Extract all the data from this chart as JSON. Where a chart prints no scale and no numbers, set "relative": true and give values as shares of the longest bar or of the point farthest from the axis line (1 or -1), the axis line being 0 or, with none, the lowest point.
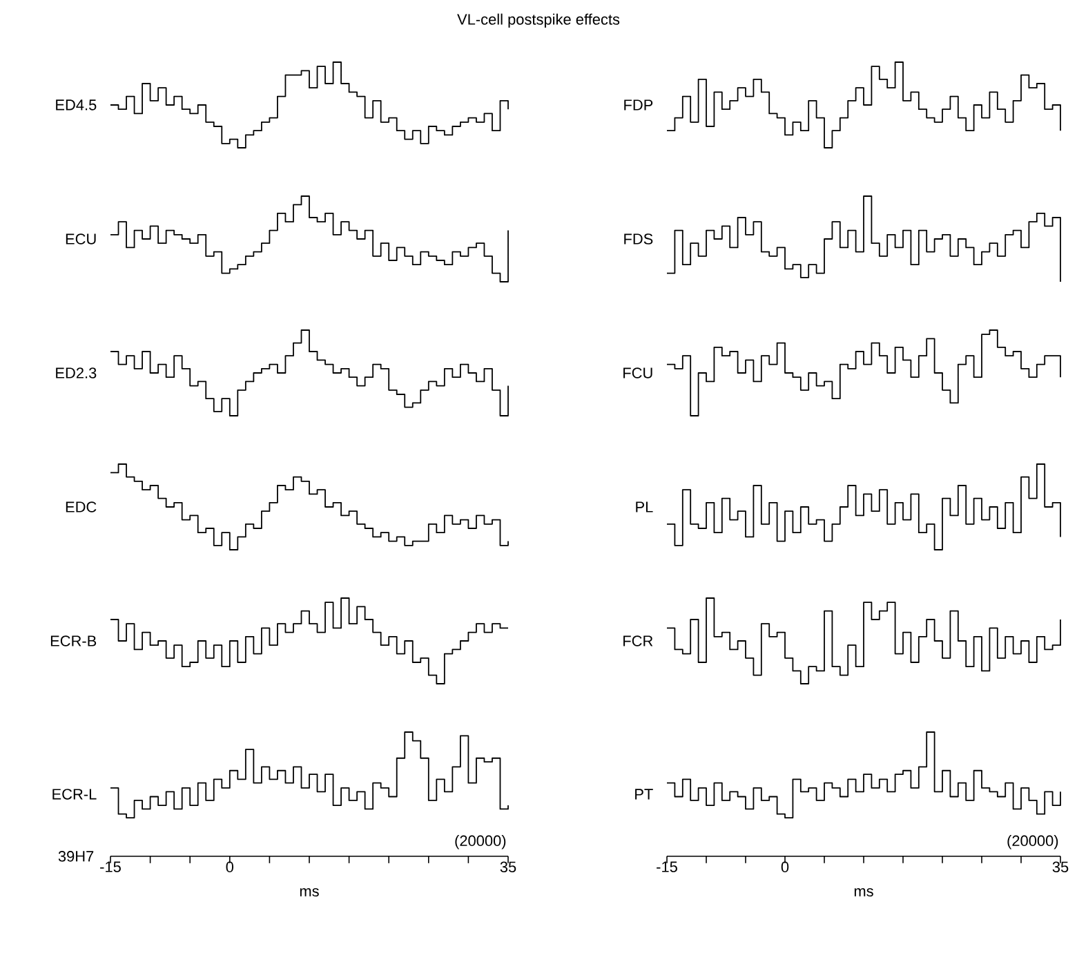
{
  "chart_data": [
    {
      "type": "step",
      "title": "VL-cell postspike effects",
      "relative": true,
      "tick_labels": false,
      "xlim": [
        -15,
        35
      ],
      "x": [
        -15,
        -14,
        -13,
        -12,
        -11,
        -10,
        -9,
        -8,
        -7,
        -6,
        -5,
        -4,
        -3,
        -2,
        -1,
        0,
        1,
        2,
        3,
        4,
        5,
        6,
        7,
        8,
        9,
        10,
        11,
        12,
        13,
        14,
        15,
        16,
        17,
        18,
        19,
        20,
        21,
        22,
        23,
        24,
        25,
        26,
        27,
        28,
        29,
        30,
        31,
        32,
        33,
        34,
        35
      ],
      "series": [
        {
          "name": "ED4.5",
          "color": "#000000",
          "values": [
            0.5,
            0.45,
            0.6,
            0.4,
            0.75,
            0.55,
            0.7,
            0.5,
            0.6,
            0.45,
            0.4,
            0.5,
            0.3,
            0.25,
            0.05,
            0.1,
            0,
            0.15,
            0.2,
            0.3,
            0.35,
            0.6,
            0.85,
            0.85,
            0.9,
            0.7,
            0.95,
            0.75,
            1,
            0.75,
            0.65,
            0.6,
            0.35,
            0.55,
            0.3,
            0.35,
            0.2,
            0.1,
            0.2,
            0.05,
            0.25,
            0.2,
            0.15,
            0.25,
            0.3,
            0.35,
            0.3,
            0.4,
            0.2,
            0.55,
            0.45
          ]
        }
      ]
    },
    {
      "type": "step",
      "relative": true,
      "tick_labels": false,
      "xlim": [
        -15,
        35
      ],
      "x": [
        -15,
        -14,
        -13,
        -12,
        -11,
        -10,
        -9,
        -8,
        -7,
        -6,
        -5,
        -4,
        -3,
        -2,
        -1,
        0,
        1,
        2,
        3,
        4,
        5,
        6,
        7,
        8,
        9,
        10,
        11,
        12,
        13,
        14,
        15,
        16,
        17,
        18,
        19,
        20,
        21,
        22,
        23,
        24,
        25,
        26,
        27,
        28,
        29,
        30,
        31,
        32,
        33,
        34,
        35
      ],
      "series": [
        {
          "name": "ECU",
          "color": "#000000",
          "values": [
            0.55,
            0.7,
            0.4,
            0.6,
            0.5,
            0.65,
            0.45,
            0.6,
            0.55,
            0.5,
            0.45,
            0.55,
            0.3,
            0.35,
            0.1,
            0.15,
            0.2,
            0.3,
            0.35,
            0.45,
            0.6,
            0.8,
            0.7,
            0.9,
            1,
            0.75,
            0.7,
            0.8,
            0.55,
            0.7,
            0.6,
            0.5,
            0.6,
            0.3,
            0.45,
            0.25,
            0.4,
            0.3,
            0.2,
            0.35,
            0.3,
            0.25,
            0.2,
            0.35,
            0.3,
            0.4,
            0.45,
            0.3,
            0.1,
            0,
            0.6
          ]
        }
      ]
    },
    {
      "type": "step",
      "relative": true,
      "tick_labels": false,
      "xlim": [
        -15,
        35
      ],
      "x": [
        -15,
        -14,
        -13,
        -12,
        -11,
        -10,
        -9,
        -8,
        -7,
        -6,
        -5,
        -4,
        -3,
        -2,
        -1,
        0,
        1,
        2,
        3,
        4,
        5,
        6,
        7,
        8,
        9,
        10,
        11,
        12,
        13,
        14,
        15,
        16,
        17,
        18,
        19,
        20,
        21,
        22,
        23,
        24,
        25,
        26,
        27,
        28,
        29,
        30,
        31,
        32,
        33,
        34,
        35
      ],
      "series": [
        {
          "name": "ED2.3",
          "color": "#000000",
          "values": [
            0.75,
            0.6,
            0.7,
            0.55,
            0.75,
            0.5,
            0.6,
            0.45,
            0.7,
            0.55,
            0.35,
            0.4,
            0.2,
            0.05,
            0.2,
            0,
            0.3,
            0.4,
            0.5,
            0.55,
            0.6,
            0.5,
            0.7,
            0.85,
            1,
            0.75,
            0.65,
            0.6,
            0.5,
            0.55,
            0.45,
            0.35,
            0.45,
            0.6,
            0.55,
            0.3,
            0.25,
            0.1,
            0.15,
            0.3,
            0.4,
            0.35,
            0.55,
            0.45,
            0.6,
            0.5,
            0.4,
            0.55,
            0.3,
            0,
            0.35
          ]
        }
      ]
    },
    {
      "type": "step",
      "relative": true,
      "tick_labels": false,
      "xlim": [
        -15,
        35
      ],
      "x": [
        -15,
        -14,
        -13,
        -12,
        -11,
        -10,
        -9,
        -8,
        -7,
        -6,
        -5,
        -4,
        -3,
        -2,
        -1,
        0,
        1,
        2,
        3,
        4,
        5,
        6,
        7,
        8,
        9,
        10,
        11,
        12,
        13,
        14,
        15,
        16,
        17,
        18,
        19,
        20,
        21,
        22,
        23,
        24,
        25,
        26,
        27,
        28,
        29,
        30,
        31,
        32,
        33,
        34,
        35
      ],
      "series": [
        {
          "name": "EDC",
          "color": "#000000",
          "values": [
            0.9,
            1,
            0.85,
            0.8,
            0.7,
            0.75,
            0.6,
            0.5,
            0.55,
            0.35,
            0.4,
            0.2,
            0.25,
            0.05,
            0.2,
            0,
            0.15,
            0.3,
            0.25,
            0.45,
            0.55,
            0.75,
            0.7,
            0.85,
            0.8,
            0.65,
            0.7,
            0.5,
            0.55,
            0.4,
            0.45,
            0.3,
            0.25,
            0.15,
            0.2,
            0.1,
            0.15,
            0.05,
            0.1,
            0.1,
            0.3,
            0.2,
            0.4,
            0.3,
            0.35,
            0.25,
            0.4,
            0.3,
            0.35,
            0.05,
            0.1
          ]
        }
      ]
    },
    {
      "type": "step",
      "relative": true,
      "tick_labels": false,
      "xlim": [
        -15,
        35
      ],
      "x": [
        -15,
        -14,
        -13,
        -12,
        -11,
        -10,
        -9,
        -8,
        -7,
        -6,
        -5,
        -4,
        -3,
        -2,
        -1,
        0,
        1,
        2,
        3,
        4,
        5,
        6,
        7,
        8,
        9,
        10,
        11,
        12,
        13,
        14,
        15,
        16,
        17,
        18,
        19,
        20,
        21,
        22,
        23,
        24,
        25,
        26,
        27,
        28,
        29,
        30,
        31,
        32,
        33,
        34,
        35
      ],
      "series": [
        {
          "name": "ECR-B",
          "color": "#000000",
          "values": [
            0.75,
            0.5,
            0.7,
            0.4,
            0.6,
            0.45,
            0.5,
            0.3,
            0.45,
            0.2,
            0.25,
            0.5,
            0.3,
            0.45,
            0.2,
            0.5,
            0.25,
            0.55,
            0.35,
            0.65,
            0.45,
            0.7,
            0.6,
            0.7,
            0.85,
            0.7,
            0.6,
            0.95,
            0.65,
            1,
            0.7,
            0.9,
            0.75,
            0.6,
            0.45,
            0.55,
            0.35,
            0.5,
            0.25,
            0.3,
            0.1,
            0,
            0.35,
            0.4,
            0.5,
            0.6,
            0.7,
            0.6,
            0.7,
            0.65,
            0.65
          ]
        }
      ]
    },
    {
      "type": "step",
      "relative": true,
      "tick_labels": "x",
      "xlabel": "ms",
      "annotations": [
        "39H7",
        "(20000)"
      ],
      "xlim": [
        -15,
        35
      ],
      "xticks": [
        -15,
        {
          "value": -10,
          "label": null
        },
        {
          "value": -5,
          "label": null
        },
        0,
        {
          "value": 5,
          "label": null
        },
        {
          "value": 10,
          "label": null
        },
        {
          "value": 15,
          "label": null
        },
        {
          "value": 20,
          "label": null
        },
        {
          "value": 25,
          "label": null
        },
        {
          "value": 30,
          "label": null
        },
        35
      ],
      "x": [
        -15,
        -14,
        -13,
        -12,
        -11,
        -10,
        -9,
        -8,
        -7,
        -6,
        -5,
        -4,
        -3,
        -2,
        -1,
        0,
        1,
        2,
        3,
        4,
        5,
        6,
        7,
        8,
        9,
        10,
        11,
        12,
        13,
        14,
        15,
        16,
        17,
        18,
        19,
        20,
        21,
        22,
        23,
        24,
        25,
        26,
        27,
        28,
        29,
        30,
        31,
        32,
        33,
        34,
        35
      ],
      "series": [
        {
          "name": "ECR-L",
          "color": "#000000",
          "values": [
            0.55,
            0.34,
            0.31,
            0.45,
            0.38,
            0.48,
            0.41,
            0.52,
            0.38,
            0.55,
            0.41,
            0.59,
            0.45,
            0.62,
            0.55,
            0.69,
            0.62,
            0.86,
            0.59,
            0.72,
            0.62,
            0.69,
            0.59,
            0.72,
            0.55,
            0.66,
            0.52,
            0.66,
            0.41,
            0.55,
            0.45,
            0.52,
            0.38,
            0.59,
            0.55,
            0.48,
            0.79,
            1,
            0.93,
            0.79,
            0.45,
            0.62,
            0.52,
            0.72,
            0.97,
            0.59,
            0.79,
            0.76,
            0.79,
            0.38,
            0.41
          ]
        }
      ]
    },
    {
      "type": "step",
      "relative": true,
      "tick_labels": false,
      "xlim": [
        -15,
        35
      ],
      "x": [
        -15,
        -14,
        -13,
        -12,
        -11,
        -10,
        -9,
        -8,
        -7,
        -6,
        -5,
        -4,
        -3,
        -2,
        -1,
        0,
        1,
        2,
        3,
        4,
        5,
        6,
        7,
        8,
        9,
        10,
        11,
        12,
        13,
        14,
        15,
        16,
        17,
        18,
        19,
        20,
        21,
        22,
        23,
        24,
        25,
        26,
        27,
        28,
        29,
        30,
        31,
        32,
        33,
        34,
        35
      ],
      "series": [
        {
          "name": "FDP",
          "color": "#000000",
          "values": [
            0.2,
            0.35,
            0.6,
            0.3,
            0.8,
            0.25,
            0.65,
            0.45,
            0.55,
            0.7,
            0.6,
            0.8,
            0.65,
            0.4,
            0.35,
            0.15,
            0.3,
            0.2,
            0.55,
            0.35,
            0,
            0.2,
            0.35,
            0.55,
            0.7,
            0.5,
            0.95,
            0.8,
            0.7,
            1,
            0.55,
            0.65,
            0.45,
            0.35,
            0.3,
            0.45,
            0.6,
            0.35,
            0.2,
            0.5,
            0.35,
            0.65,
            0.45,
            0.3,
            0.55,
            0.85,
            0.7,
            0.75,
            0.45,
            0.5,
            0.2
          ]
        }
      ]
    },
    {
      "type": "step",
      "relative": true,
      "tick_labels": false,
      "xlim": [
        -15,
        35
      ],
      "x": [
        -15,
        -14,
        -13,
        -12,
        -11,
        -10,
        -9,
        -8,
        -7,
        -6,
        -5,
        -4,
        -3,
        -2,
        -1,
        0,
        1,
        2,
        3,
        4,
        5,
        6,
        7,
        8,
        9,
        10,
        11,
        12,
        13,
        14,
        15,
        16,
        17,
        18,
        19,
        20,
        21,
        22,
        23,
        24,
        25,
        26,
        27,
        28,
        29,
        30,
        31,
        32,
        33,
        34,
        35
      ],
      "series": [
        {
          "name": "FDS",
          "color": "#000000",
          "values": [
            0.1,
            0.6,
            0.2,
            0.45,
            0.3,
            0.6,
            0.5,
            0.65,
            0.4,
            0.75,
            0.55,
            0.7,
            0.35,
            0.3,
            0.4,
            0.15,
            0.2,
            0.05,
            0.2,
            0.1,
            0.5,
            0.7,
            0.4,
            0.6,
            0.35,
            1,
            0.45,
            0.3,
            0.55,
            0.4,
            0.6,
            0.2,
            0.6,
            0.35,
            0.5,
            0.55,
            0.3,
            0.5,
            0.4,
            0.2,
            0.35,
            0.45,
            0.3,
            0.55,
            0.6,
            0.4,
            0.7,
            0.8,
            0.65,
            0.75,
            0
          ]
        }
      ]
    },
    {
      "type": "step",
      "relative": true,
      "tick_labels": false,
      "xlim": [
        -15,
        35
      ],
      "x": [
        -15,
        -14,
        -13,
        -12,
        -11,
        -10,
        -9,
        -8,
        -7,
        -6,
        -5,
        -4,
        -3,
        -2,
        -1,
        0,
        1,
        2,
        3,
        4,
        5,
        6,
        7,
        8,
        9,
        10,
        11,
        12,
        13,
        14,
        15,
        16,
        17,
        18,
        19,
        20,
        21,
        22,
        23,
        24,
        25,
        26,
        27,
        28,
        29,
        30,
        31,
        32,
        33,
        34,
        35
      ],
      "series": [
        {
          "name": "FCU",
          "color": "#000000",
          "values": [
            0.6,
            0.55,
            0.7,
            0,
            0.5,
            0.4,
            0.8,
            0.7,
            0.75,
            0.5,
            0.65,
            0.4,
            0.7,
            0.6,
            0.85,
            0.5,
            0.45,
            0.3,
            0.5,
            0.35,
            0.4,
            0.2,
            0.6,
            0.55,
            0.75,
            0.6,
            0.85,
            0.7,
            0.5,
            0.8,
            0.65,
            0.45,
            0.7,
            0.9,
            0.5,
            0.3,
            0.15,
            0.6,
            0.7,
            0.45,
            0.95,
            1,
            0.8,
            0.7,
            0.75,
            0.55,
            0.45,
            0.6,
            0.7,
            0.7,
            0.45
          ]
        }
      ]
    },
    {
      "type": "step",
      "relative": true,
      "tick_labels": false,
      "xlim": [
        -15,
        35
      ],
      "x": [
        -15,
        -14,
        -13,
        -12,
        -11,
        -10,
        -9,
        -8,
        -7,
        -6,
        -5,
        -4,
        -3,
        -2,
        -1,
        0,
        1,
        2,
        3,
        4,
        5,
        6,
        7,
        8,
        9,
        10,
        11,
        12,
        13,
        14,
        15,
        16,
        17,
        18,
        19,
        20,
        21,
        22,
        23,
        24,
        25,
        26,
        27,
        28,
        29,
        30,
        31,
        32,
        33,
        34,
        35
      ],
      "series": [
        {
          "name": "PL",
          "color": "#000000",
          "values": [
            0.3,
            0.05,
            0.7,
            0.3,
            0.25,
            0.55,
            0.2,
            0.6,
            0.35,
            0.45,
            0.15,
            0.75,
            0.3,
            0.55,
            0.1,
            0.45,
            0.2,
            0.5,
            0.3,
            0.35,
            0.1,
            0.3,
            0.5,
            0.75,
            0.4,
            0.65,
            0.45,
            0.7,
            0.3,
            0.55,
            0.35,
            0.65,
            0.2,
            0.3,
            0,
            0.6,
            0.4,
            0.75,
            0.3,
            0.6,
            0.35,
            0.5,
            0.25,
            0.55,
            0.2,
            0.85,
            0.6,
            1,
            0.5,
            0.55,
            0.15
          ]
        }
      ]
    },
    {
      "type": "step",
      "relative": true,
      "tick_labels": false,
      "xlim": [
        -15,
        35
      ],
      "x": [
        -15,
        -14,
        -13,
        -12,
        -11,
        -10,
        -9,
        -8,
        -7,
        -6,
        -5,
        -4,
        -3,
        -2,
        -1,
        0,
        1,
        2,
        3,
        4,
        5,
        6,
        7,
        8,
        9,
        10,
        11,
        12,
        13,
        14,
        15,
        16,
        17,
        18,
        19,
        20,
        21,
        22,
        23,
        24,
        25,
        26,
        27,
        28,
        29,
        30,
        31,
        32,
        33,
        34,
        35
      ],
      "series": [
        {
          "name": "FCR",
          "color": "#000000",
          "values": [
            0.65,
            0.4,
            0.35,
            0.75,
            0.25,
            1,
            0.55,
            0.6,
            0.4,
            0.5,
            0.3,
            0.1,
            0.7,
            0.55,
            0.6,
            0.3,
            0.15,
            0,
            0.2,
            0.15,
            0.85,
            0.2,
            0.1,
            0.45,
            0.2,
            0.95,
            0.75,
            0.85,
            0.95,
            0.35,
            0.6,
            0.25,
            0.55,
            0.75,
            0.5,
            0.3,
            0.85,
            0.5,
            0.2,
            0.55,
            0.15,
            0.65,
            0.3,
            0.55,
            0.35,
            0.5,
            0.25,
            0.55,
            0.4,
            0.45,
            0.75
          ]
        }
      ]
    },
    {
      "type": "step",
      "relative": true,
      "tick_labels": "x",
      "xlabel": "ms",
      "annotations": [
        "(20000)"
      ],
      "xlim": [
        -15,
        35
      ],
      "xticks": [
        -15,
        {
          "value": -10,
          "label": null
        },
        {
          "value": -5,
          "label": null
        },
        0,
        {
          "value": 5,
          "label": null
        },
        {
          "value": 10,
          "label": null
        },
        {
          "value": 15,
          "label": null
        },
        {
          "value": 20,
          "label": null
        },
        {
          "value": 25,
          "label": null
        },
        {
          "value": 30,
          "label": null
        },
        35
      ],
      "x": [
        -15,
        -14,
        -13,
        -12,
        -11,
        -10,
        -9,
        -8,
        -7,
        -6,
        -5,
        -4,
        -3,
        -2,
        -1,
        0,
        1,
        2,
        3,
        4,
        5,
        6,
        7,
        8,
        9,
        10,
        11,
        12,
        13,
        14,
        15,
        16,
        17,
        18,
        19,
        20,
        21,
        22,
        23,
        24,
        25,
        26,
        27,
        28,
        29,
        30,
        31,
        32,
        33,
        34,
        35
      ],
      "series": [
        {
          "name": "PT",
          "color": "#000000",
          "values": [
            0.59,
            0.48,
            0.62,
            0.45,
            0.55,
            0.41,
            0.59,
            0.45,
            0.52,
            0.48,
            0.38,
            0.55,
            0.45,
            0.48,
            0.34,
            0.31,
            0.62,
            0.52,
            0.55,
            0.45,
            0.59,
            0.55,
            0.48,
            0.62,
            0.52,
            0.66,
            0.55,
            0.62,
            0.52,
            0.66,
            0.69,
            0.55,
            0.72,
            1,
            0.52,
            0.69,
            0.48,
            0.59,
            0.45,
            0.69,
            0.55,
            0.52,
            0.48,
            0.59,
            0.38,
            0.55,
            0.45,
            0.34,
            0.52,
            0.41,
            0.52
          ]
        }
      ]
    }
  ]
}
